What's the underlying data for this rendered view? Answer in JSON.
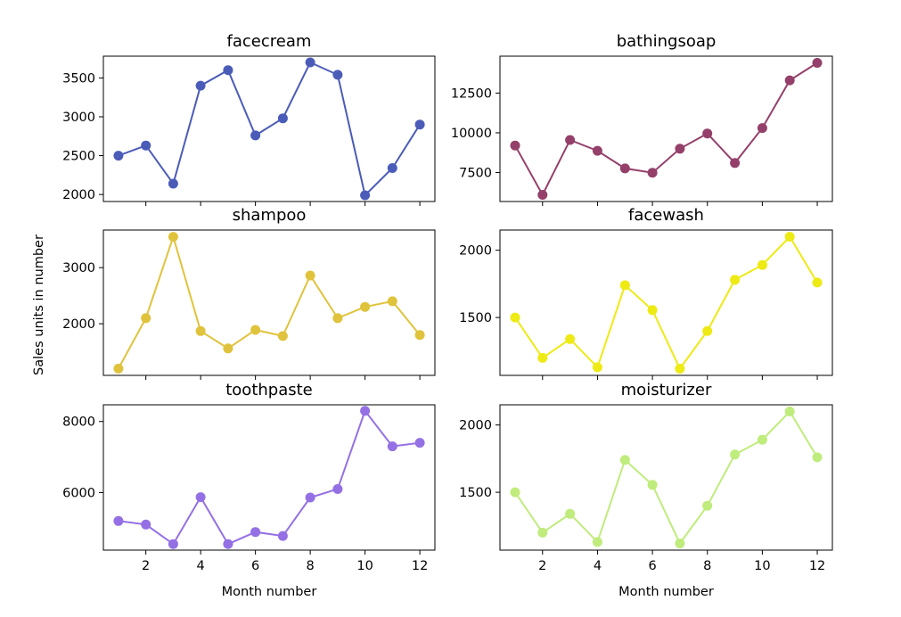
{
  "figure": {
    "ylabel": "Sales units in number",
    "xlabel": "Month number"
  },
  "chart_data": [
    {
      "type": "line",
      "title": "facecream",
      "color": "#4b5cb8",
      "x": [
        1,
        2,
        3,
        4,
        5,
        6,
        7,
        8,
        9,
        10,
        11,
        12
      ],
      "values": [
        2500,
        2630,
        2140,
        3400,
        3600,
        2760,
        2980,
        3700,
        3540,
        1990,
        2340,
        2900
      ],
      "ylim": [
        1910,
        3780
      ],
      "yticks": [
        2000,
        2500,
        3000,
        3500
      ],
      "xticks": [
        2,
        4,
        6,
        8,
        10,
        12
      ],
      "show_xtick_labels": false
    },
    {
      "type": "line",
      "title": "bathingsoap",
      "color": "#94406a",
      "x": [
        1,
        2,
        3,
        4,
        5,
        6,
        7,
        8,
        9,
        10,
        11,
        12
      ],
      "values": [
        9200,
        6100,
        9550,
        8870,
        7760,
        7490,
        9000,
        9960,
        8100,
        10300,
        13300,
        14400
      ],
      "ylim": [
        5680,
        14820
      ],
      "yticks": [
        7500,
        10000,
        12500
      ],
      "xticks": [
        2,
        4,
        6,
        8,
        10,
        12
      ],
      "show_xtick_labels": false
    },
    {
      "type": "line",
      "title": "shampoo",
      "color": "#e0c33c",
      "x": [
        1,
        2,
        3,
        4,
        5,
        6,
        7,
        8,
        9,
        10,
        11,
        12
      ],
      "values": [
        1200,
        2100,
        3550,
        1870,
        1560,
        1890,
        1780,
        2860,
        2100,
        2300,
        2400,
        1800
      ],
      "ylim": [
        1080,
        3670
      ],
      "yticks": [
        2000,
        3000
      ],
      "xticks": [
        2,
        4,
        6,
        8,
        10,
        12
      ],
      "show_xtick_labels": false
    },
    {
      "type": "line",
      "title": "facewash",
      "color": "#eeea14",
      "x": [
        1,
        2,
        3,
        4,
        5,
        6,
        7,
        8,
        9,
        10,
        11,
        12
      ],
      "values": [
        1500,
        1200,
        1340,
        1130,
        1740,
        1555,
        1120,
        1400,
        1780,
        1890,
        2100,
        1760
      ],
      "ylim": [
        1070,
        2150
      ],
      "yticks": [
        1500,
        2000
      ],
      "xticks": [
        2,
        4,
        6,
        8,
        10,
        12
      ],
      "show_xtick_labels": false
    },
    {
      "type": "line",
      "title": "toothpaste",
      "color": "#9470e4",
      "x": [
        1,
        2,
        3,
        4,
        5,
        6,
        7,
        8,
        9,
        10,
        11,
        12
      ],
      "values": [
        5200,
        5100,
        4550,
        5870,
        4550,
        4890,
        4780,
        5860,
        6100,
        8300,
        7300,
        7400
      ],
      "ylim": [
        4380,
        8470
      ],
      "yticks": [
        6000,
        8000
      ],
      "xticks": [
        2,
        4,
        6,
        8,
        10,
        12
      ],
      "xtick_labels": [
        "2",
        "4",
        "6",
        "8",
        "10",
        "12"
      ],
      "show_xtick_labels": true
    },
    {
      "type": "line",
      "title": "moisturizer",
      "color": "#bfec7c",
      "x": [
        1,
        2,
        3,
        4,
        5,
        6,
        7,
        8,
        9,
        10,
        11,
        12
      ],
      "values": [
        1500,
        1200,
        1340,
        1130,
        1740,
        1555,
        1120,
        1400,
        1780,
        1890,
        2100,
        1760
      ],
      "ylim": [
        1070,
        2150
      ],
      "yticks": [
        1500,
        2000
      ],
      "xticks": [
        2,
        4,
        6,
        8,
        10,
        12
      ],
      "xtick_labels": [
        "2",
        "4",
        "6",
        "8",
        "10",
        "12"
      ],
      "show_xtick_labels": true
    }
  ]
}
